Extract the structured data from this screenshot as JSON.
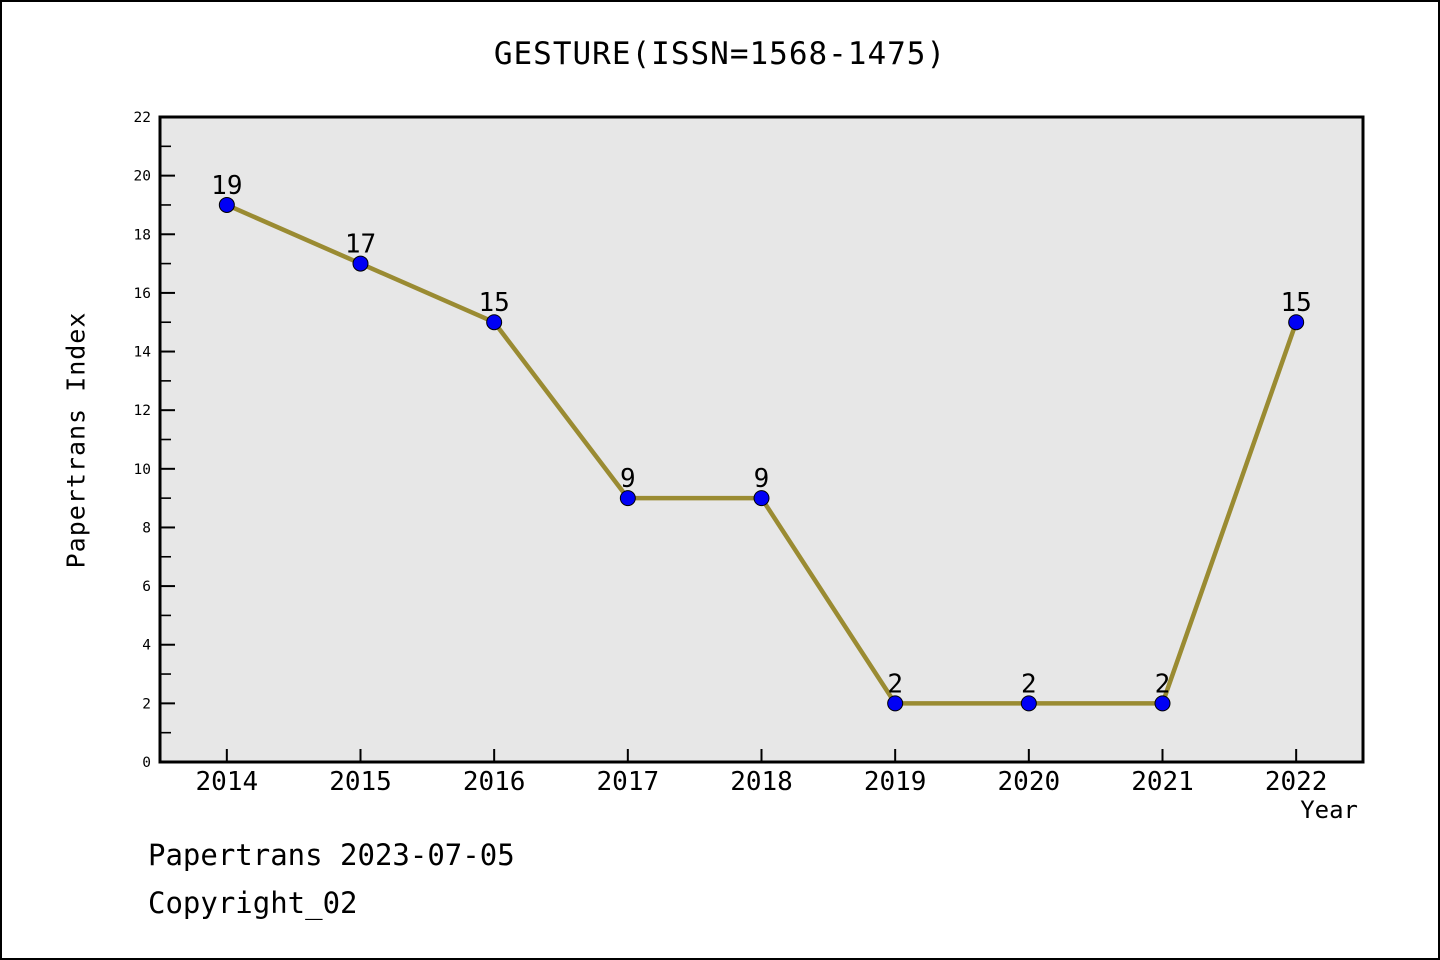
{
  "title": "GESTURE(ISSN=1568-1475)",
  "footer": {
    "line1": "Papertrans 2023-07-05",
    "line2": "Copyright_02"
  },
  "chart_data": {
    "type": "line",
    "title": "GESTURE(ISSN=1568-1475)",
    "x": [
      2014,
      2015,
      2016,
      2017,
      2018,
      2019,
      2020,
      2021,
      2022
    ],
    "values": [
      19,
      17,
      15,
      9,
      9,
      2,
      2,
      2,
      15
    ],
    "point_labels": [
      "19",
      "17",
      "15",
      "9",
      "9",
      "2",
      "2",
      "2",
      "15"
    ],
    "xlabel": "Year",
    "ylabel": "Papertrans Index",
    "ylim": [
      0,
      22
    ],
    "ytick_major_step": 2,
    "ytick_minor_step": 1,
    "grid": false,
    "legend": "none",
    "colors": {
      "line": "#9A8B32",
      "marker_fill": "#0000F5",
      "marker_edge": "#000000",
      "plot_bg": "#E7E7E7",
      "fig_bg": "#FFFFFF",
      "axis": "#000000",
      "text": "#000000"
    }
  }
}
